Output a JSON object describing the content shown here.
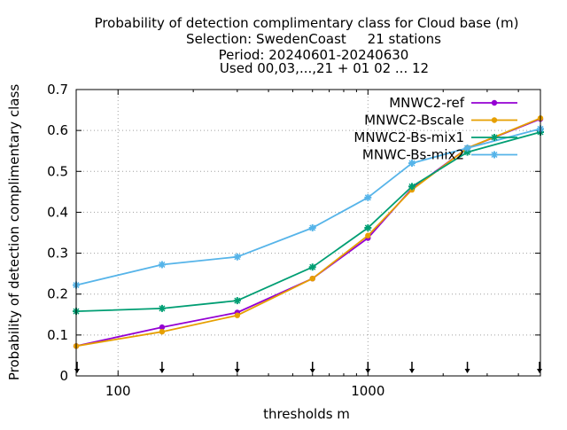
{
  "chart_data": {
    "type": "line",
    "title_lines": [
      "Probability of detection complimentary class  for Cloud base (m)",
      "Selection: SwedenCoast     21 stations",
      "Period: 20240601-20240630",
      "Used 00,03,...,21 + 01 02 ... 12"
    ],
    "xlabel": "thresholds m",
    "ylabel": "Probability of detection complimentary class",
    "x_scale": "log",
    "xlim": [
      68,
      4900
    ],
    "ylim": [
      0,
      0.7
    ],
    "x_ticks": [
      100,
      1000
    ],
    "x_tick_labels": [
      "100",
      "1000"
    ],
    "x_minor_ticks": [
      200,
      300,
      400,
      500,
      600,
      700,
      800,
      900,
      2000,
      3000,
      4000
    ],
    "y_ticks": [
      0,
      0.1,
      0.2,
      0.3,
      0.4,
      0.5,
      0.6,
      0.7
    ],
    "y_tick_labels": [
      "0",
      "0.1",
      "0.2",
      "0.3",
      "0.4",
      "0.5",
      "0.6",
      "0.7"
    ],
    "grid": true,
    "legend_position": "top-right",
    "threshold_markers": [
      68,
      150,
      300,
      600,
      1000,
      1500,
      2500,
      4900
    ],
    "x": [
      68,
      150,
      300,
      600,
      1000,
      1500,
      2500,
      4900
    ],
    "series": [
      {
        "name": "MNWC2-ref",
        "color": "#9400d3",
        "marker": "circle",
        "values": [
          0.073,
          0.119,
          0.155,
          0.238,
          0.337,
          0.458,
          0.557,
          0.628
        ]
      },
      {
        "name": "MNWC2-Bscale",
        "color": "#e69f00",
        "marker": "circle",
        "values": [
          0.073,
          0.108,
          0.148,
          0.238,
          0.343,
          0.455,
          0.557,
          0.63
        ]
      },
      {
        "name": "MNWC2-Bs-mix1",
        "color": "#009e73",
        "marker": "star",
        "values": [
          0.158,
          0.165,
          0.184,
          0.266,
          0.362,
          0.463,
          0.547,
          0.596
        ]
      },
      {
        "name": "MNWC-Bs-mix2",
        "color": "#56b4e9",
        "marker": "star",
        "values": [
          0.222,
          0.272,
          0.291,
          0.362,
          0.436,
          0.52,
          0.557,
          0.604
        ]
      }
    ]
  }
}
